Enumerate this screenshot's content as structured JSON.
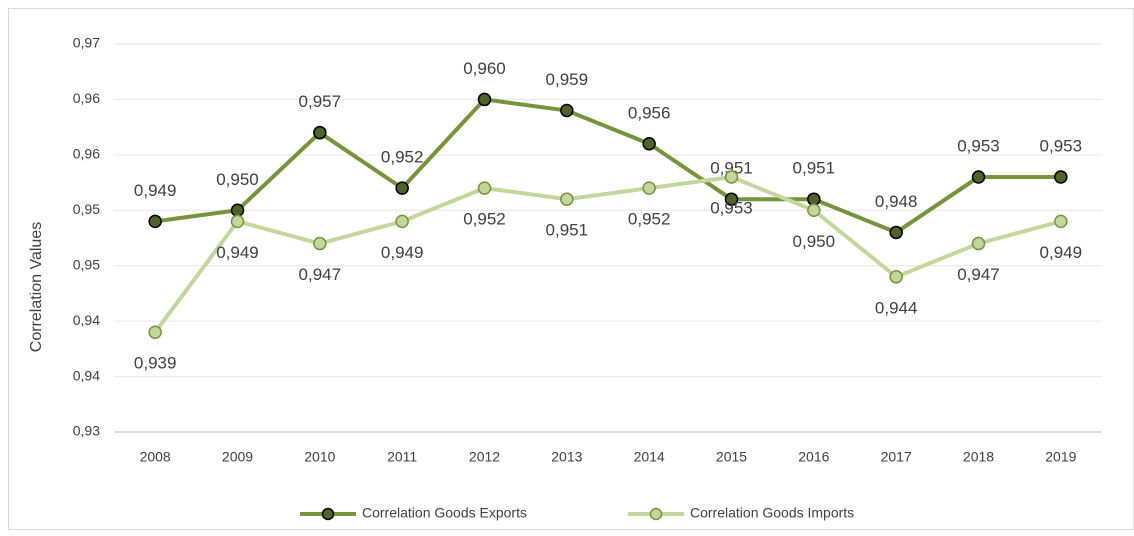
{
  "chart_data": {
    "type": "line",
    "y_label": "Correlation Values",
    "categories": [
      "2008",
      "2009",
      "2010",
      "2011",
      "2012",
      "2013",
      "2014",
      "2015",
      "2016",
      "2017",
      "2018",
      "2019"
    ],
    "series": [
      {
        "name": "Correlation Goods Exports",
        "color": "#77933c",
        "marker_color": "#4f6228",
        "values": [
          0.949,
          0.95,
          0.957,
          0.952,
          0.96,
          0.959,
          0.956,
          0.951,
          0.951,
          0.948,
          0.953,
          0.953
        ],
        "value_labels": [
          "0,949",
          "0,950",
          "0,957",
          "0,952",
          "0,960",
          "0,959",
          "0,956",
          "0,951",
          "0,951",
          "0,948",
          "0,953",
          "0,953"
        ]
      },
      {
        "name": "Correlation Goods Imports",
        "color": "#c3d69b",
        "marker_color": "#c3d69b",
        "values": [
          0.939,
          0.949,
          0.947,
          0.949,
          0.952,
          0.951,
          0.952,
          0.953,
          0.95,
          0.944,
          0.947,
          0.949
        ],
        "value_labels": [
          "0,939",
          "0,949",
          "0,947",
          "0,949",
          "0,952",
          "0,951",
          "0,952",
          "0,953",
          "0,950",
          "0,944",
          "0,947",
          "0,949"
        ]
      }
    ],
    "ylim": [
      0.93,
      0.965
    ],
    "yticks": [
      {
        "value": 0.93,
        "label": "0,93"
      },
      {
        "value": 0.935,
        "label": "0,94"
      },
      {
        "value": 0.94,
        "label": "0,94"
      },
      {
        "value": 0.945,
        "label": "0,95"
      },
      {
        "value": 0.95,
        "label": "0,95"
      },
      {
        "value": 0.955,
        "label": "0,96"
      },
      {
        "value": 0.96,
        "label": "0,96"
      },
      {
        "value": 0.965,
        "label": "0,97"
      }
    ],
    "grid": true,
    "legend": "bottom"
  }
}
